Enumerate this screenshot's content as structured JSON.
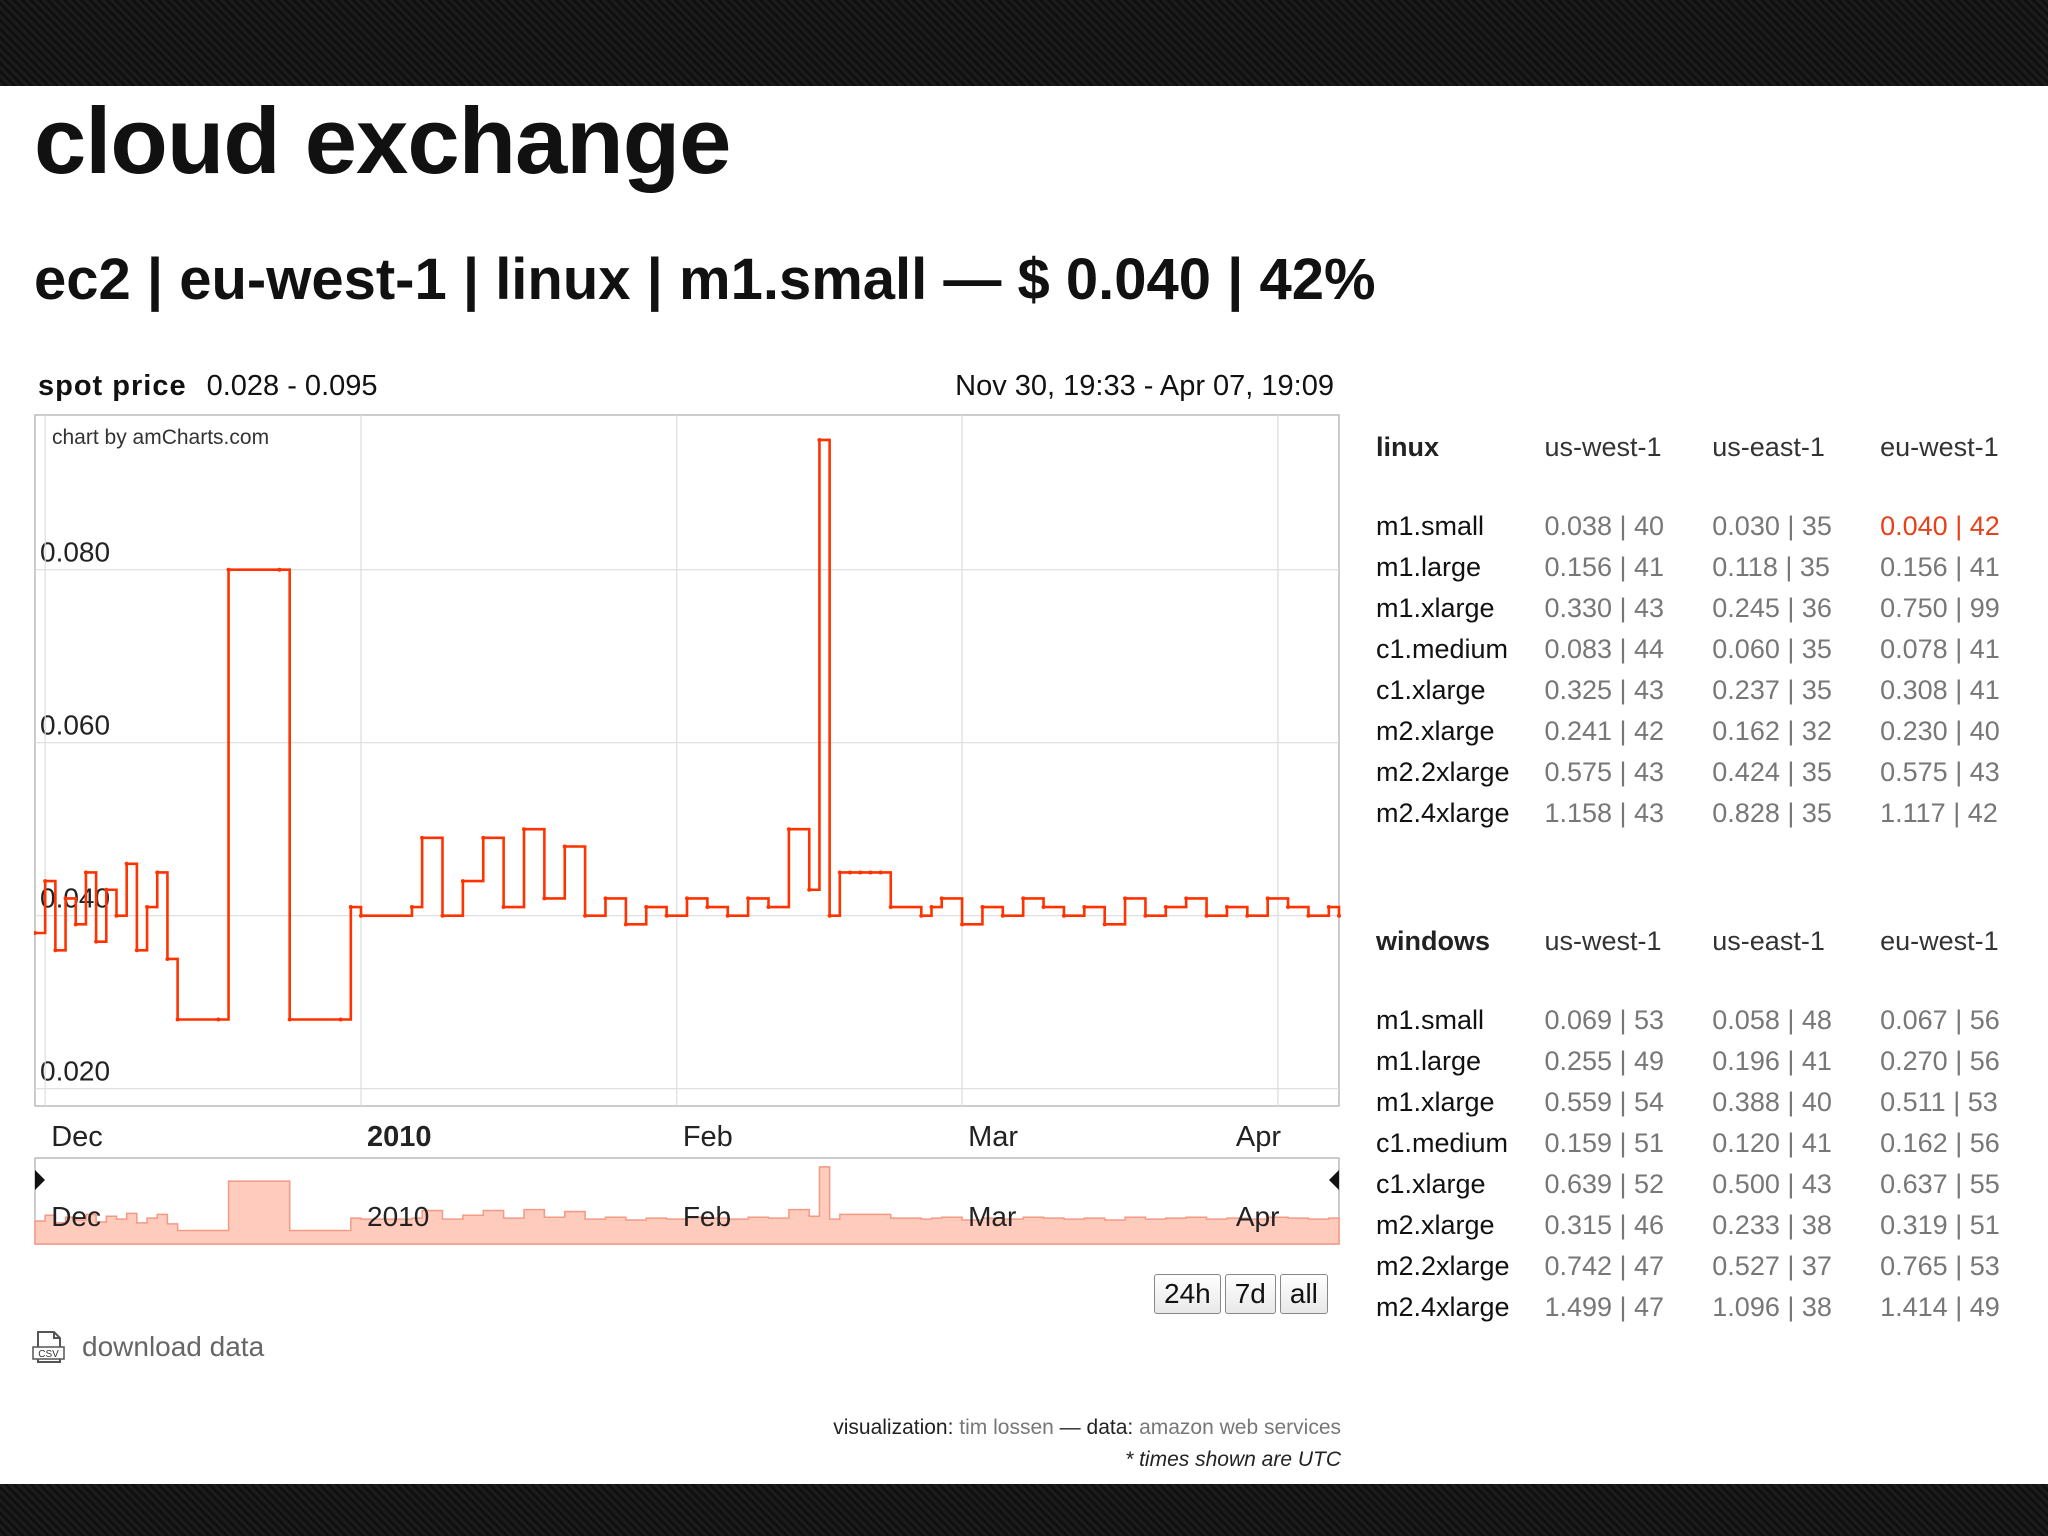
{
  "title": "cloud exchange",
  "subtitle": "ec2 | eu-west-1 | linux | m1.small — $ 0.040 | 42%",
  "chart_header": {
    "label": "spot price",
    "range": "0.028 - 0.095",
    "dates": "Nov 30, 19:33 - Apr 07, 19:09"
  },
  "chart_data": {
    "type": "line",
    "watermark": "chart by amCharts.com",
    "ylim": [
      0.018,
      0.098
    ],
    "y_ticks": [
      "0.020",
      "0.040",
      "0.060",
      "0.080"
    ],
    "y_tick_values": [
      0.02,
      0.04,
      0.06,
      0.08
    ],
    "x_ticks": [
      "Dec",
      "2010",
      "Feb",
      "Mar",
      "Apr"
    ],
    "x_tick_bold": [
      false,
      true,
      false,
      false,
      false
    ],
    "xlim": [
      "2009-11-30",
      "2010-04-07"
    ],
    "x_tick_dates": [
      "2009-12-01",
      "2010-01-01",
      "2010-02-01",
      "2010-03-01",
      "2010-04-01"
    ],
    "color": "#ff3300",
    "grid": true,
    "series": [
      {
        "x": [
          "2009-11-30",
          "2009-12-01",
          "2009-12-02",
          "2009-12-03",
          "2009-12-04",
          "2009-12-05",
          "2009-12-06",
          "2009-12-07",
          "2009-12-08",
          "2009-12-09",
          "2009-12-10",
          "2009-12-11",
          "2009-12-12",
          "2009-12-13",
          "2009-12-14",
          "2009-12-18",
          "2009-12-19",
          "2009-12-24",
          "2009-12-25",
          "2009-12-30",
          "2009-12-31",
          "2010-01-01",
          "2010-01-06",
          "2010-01-07",
          "2010-01-09",
          "2010-01-11",
          "2010-01-13",
          "2010-01-15",
          "2010-01-17",
          "2010-01-19",
          "2010-01-21",
          "2010-01-23",
          "2010-01-25",
          "2010-01-27",
          "2010-01-29",
          "2010-01-31",
          "2010-02-02",
          "2010-02-04",
          "2010-02-06",
          "2010-02-08",
          "2010-02-10",
          "2010-02-12",
          "2010-02-14",
          "2010-02-15",
          "2010-02-16",
          "2010-02-17",
          "2010-02-18",
          "2010-02-19",
          "2010-02-20",
          "2010-02-21",
          "2010-02-22",
          "2010-02-25",
          "2010-02-26",
          "2010-02-27",
          "2010-03-01",
          "2010-03-03",
          "2010-03-05",
          "2010-03-07",
          "2010-03-09",
          "2010-03-11",
          "2010-03-13",
          "2010-03-15",
          "2010-03-17",
          "2010-03-19",
          "2010-03-21",
          "2010-03-23",
          "2010-03-25",
          "2010-03-27",
          "2010-03-29",
          "2010-03-31",
          "2010-04-02",
          "2010-04-04",
          "2010-04-06",
          "2010-04-07"
        ],
        "y": [
          0.038,
          0.044,
          0.036,
          0.042,
          0.039,
          0.045,
          0.037,
          0.043,
          0.04,
          0.046,
          0.036,
          0.041,
          0.045,
          0.035,
          0.028,
          0.028,
          0.08,
          0.08,
          0.028,
          0.028,
          0.041,
          0.04,
          0.041,
          0.049,
          0.04,
          0.044,
          0.049,
          0.041,
          0.05,
          0.042,
          0.048,
          0.04,
          0.042,
          0.039,
          0.041,
          0.04,
          0.042,
          0.041,
          0.04,
          0.042,
          0.041,
          0.05,
          0.043,
          0.095,
          0.04,
          0.045,
          0.045,
          0.045,
          0.045,
          0.045,
          0.041,
          0.04,
          0.041,
          0.042,
          0.039,
          0.041,
          0.04,
          0.042,
          0.041,
          0.04,
          0.041,
          0.039,
          0.042,
          0.04,
          0.041,
          0.042,
          0.04,
          0.041,
          0.04,
          0.042,
          0.041,
          0.04,
          0.041,
          0.04
        ]
      }
    ],
    "navigator_labels": [
      "Dec",
      "2010",
      "Feb",
      "Mar",
      "Apr"
    ]
  },
  "range_buttons": [
    "24h",
    "7d",
    "all"
  ],
  "download": "download data",
  "credits": {
    "viz_label": "visualization:",
    "viz_name": "tim lossen",
    "dash": "—",
    "data_label": "data:",
    "data_name": "amazon web services",
    "note": "* times shown are UTC"
  },
  "linux": {
    "header": "linux",
    "columns": [
      "us-west-1",
      "us-east-1",
      "eu-west-1"
    ],
    "rows": [
      {
        "name": "m1.small",
        "values": [
          "0.038 | 40",
          "0.030 | 35",
          "0.040 | 42"
        ]
      },
      {
        "name": "m1.large",
        "values": [
          "0.156 | 41",
          "0.118 | 35",
          "0.156 | 41"
        ]
      },
      {
        "name": "m1.xlarge",
        "values": [
          "0.330 | 43",
          "0.245 | 36",
          "0.750 | 99"
        ]
      },
      {
        "name": "c1.medium",
        "values": [
          "0.083 | 44",
          "0.060 | 35",
          "0.078 | 41"
        ]
      },
      {
        "name": "c1.xlarge",
        "values": [
          "0.325 | 43",
          "0.237 | 35",
          "0.308 | 41"
        ]
      },
      {
        "name": "m2.xlarge",
        "values": [
          "0.241 | 42",
          "0.162 | 32",
          "0.230 | 40"
        ]
      },
      {
        "name": "m2.2xlarge",
        "values": [
          "0.575 | 43",
          "0.424 | 35",
          "0.575 | 43"
        ]
      },
      {
        "name": "m2.4xlarge",
        "values": [
          "1.158 | 43",
          "0.828 | 35",
          "1.117 | 42"
        ]
      }
    ]
  },
  "windows": {
    "header": "windows",
    "columns": [
      "us-west-1",
      "us-east-1",
      "eu-west-1"
    ],
    "rows": [
      {
        "name": "m1.small",
        "values": [
          "0.069 | 53",
          "0.058 | 48",
          "0.067 | 56"
        ]
      },
      {
        "name": "m1.large",
        "values": [
          "0.255 | 49",
          "0.196 | 41",
          "0.270 | 56"
        ]
      },
      {
        "name": "m1.xlarge",
        "values": [
          "0.559 | 54",
          "0.388 | 40",
          "0.511 | 53"
        ]
      },
      {
        "name": "c1.medium",
        "values": [
          "0.159 | 51",
          "0.120 | 41",
          "0.162 | 56"
        ]
      },
      {
        "name": "c1.xlarge",
        "values": [
          "0.639 | 52",
          "0.500 | 43",
          "0.637 | 55"
        ]
      },
      {
        "name": "m2.xlarge",
        "values": [
          "0.315 | 46",
          "0.233 | 38",
          "0.319 | 51"
        ]
      },
      {
        "name": "m2.2xlarge",
        "values": [
          "0.742 | 47",
          "0.527 | 37",
          "0.765 | 53"
        ]
      },
      {
        "name": "m2.4xlarge",
        "values": [
          "1.499 | 47",
          "1.096 | 38",
          "1.414 | 49"
        ]
      }
    ]
  },
  "highlight": {
    "table": "linux",
    "row": 0,
    "col": 2
  },
  "highlight_color": "#e8401a"
}
